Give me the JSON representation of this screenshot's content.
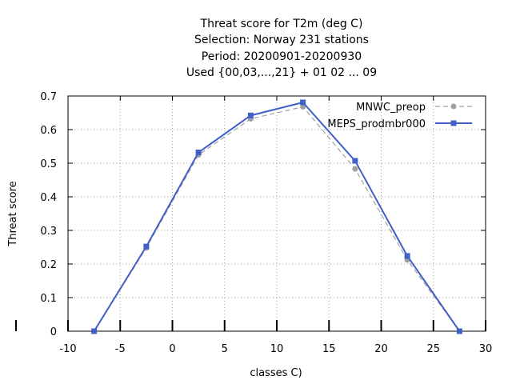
{
  "chart_data": {
    "type": "line",
    "title_lines": [
      "Threat score  for T2m (deg C)",
      "Selection: Norway    231 stations",
      "Period: 20200901-20200930",
      "Used {00,03,...,21} + 01 02 ... 09"
    ],
    "xlabel": "classes C)",
    "ylabel": "Threat score",
    "xlim": [
      -10,
      30
    ],
    "ylim": [
      0,
      0.7
    ],
    "xticks": [
      -10,
      -5,
      0,
      5,
      10,
      15,
      20,
      25,
      30
    ],
    "yticks": [
      0,
      0.1,
      0.2,
      0.3,
      0.4,
      0.5,
      0.6,
      0.7
    ],
    "xtick_labels": [
      "-10",
      "-5",
      "0",
      "5",
      "10",
      "15",
      "20",
      "25",
      "30"
    ],
    "ytick_labels": [
      "0",
      "0.1",
      "0.2",
      "0.3",
      "0.4",
      "0.5",
      "0.6",
      "0.7"
    ],
    "grid": true,
    "legend_position": "top-right",
    "x": [
      -7.5,
      -2.5,
      2.5,
      7.5,
      12.5,
      17.5,
      22.5,
      27.5
    ],
    "series": [
      {
        "name": "MNWC_preop",
        "values": [
          0.0,
          0.248,
          0.525,
          0.632,
          0.668,
          0.483,
          0.212,
          0.0
        ],
        "color": "#a0a0a0",
        "dash": true
      },
      {
        "name": "MEPS_prodmbr000",
        "values": [
          0.0,
          0.252,
          0.532,
          0.642,
          0.681,
          0.507,
          0.224,
          0.0
        ],
        "color": "#4060c8",
        "dash": false
      }
    ]
  }
}
